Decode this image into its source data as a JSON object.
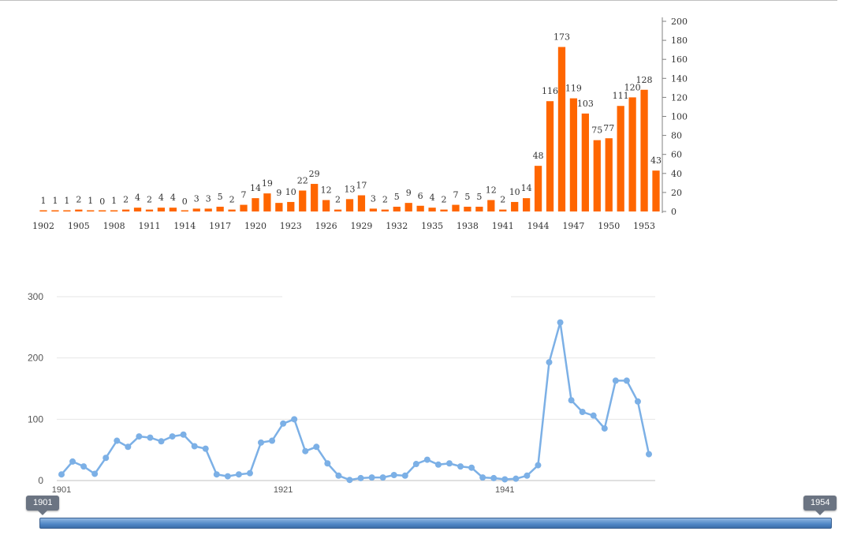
{
  "colors": {
    "bar": "#ff6600",
    "line": "#7cb0e6",
    "grid": "#e6e6e6",
    "axis_text": "#333333"
  },
  "range_slider": {
    "start_label": "1901",
    "end_label": "1954"
  },
  "chart_data": [
    {
      "type": "bar",
      "x": [
        1902,
        1903,
        1904,
        1905,
        1906,
        1907,
        1908,
        1909,
        1910,
        1911,
        1912,
        1913,
        1914,
        1915,
        1916,
        1917,
        1918,
        1919,
        1920,
        1921,
        1922,
        1923,
        1924,
        1925,
        1926,
        1927,
        1928,
        1929,
        1930,
        1931,
        1932,
        1933,
        1934,
        1935,
        1936,
        1937,
        1938,
        1939,
        1940,
        1941,
        1942,
        1943,
        1944,
        1945,
        1946,
        1947,
        1948,
        1949,
        1950,
        1951,
        1952,
        1953,
        1954
      ],
      "values": [
        1,
        1,
        1,
        2,
        1,
        0,
        1,
        2,
        4,
        2,
        4,
        4,
        0,
        3,
        3,
        5,
        2,
        7,
        14,
        19,
        9,
        10,
        22,
        29,
        12,
        2,
        13,
        17,
        3,
        2,
        5,
        9,
        6,
        4,
        2,
        7,
        5,
        5,
        12,
        2,
        10,
        14,
        48,
        116,
        173,
        119,
        103,
        75,
        77,
        111,
        120,
        128,
        43
      ],
      "x_tick_labels": [
        "1902",
        "1905",
        "1908",
        "1911",
        "1914",
        "1917",
        "1920",
        "1923",
        "1926",
        "1929",
        "1932",
        "1935",
        "1938",
        "1941",
        "1944",
        "1947",
        "1950",
        "1953"
      ],
      "y_tick_labels": [
        "0",
        "20",
        "40",
        "60",
        "80",
        "100",
        "120",
        "140",
        "160",
        "180",
        "200"
      ],
      "ylim": [
        0,
        200
      ],
      "yaxis_side": "right",
      "data_labels": true,
      "grid": false
    },
    {
      "type": "line",
      "x": [
        1901,
        1902,
        1903,
        1904,
        1905,
        1906,
        1907,
        1908,
        1909,
        1910,
        1911,
        1912,
        1913,
        1914,
        1915,
        1916,
        1917,
        1918,
        1919,
        1920,
        1921,
        1922,
        1923,
        1924,
        1925,
        1926,
        1927,
        1928,
        1929,
        1930,
        1931,
        1932,
        1933,
        1934,
        1935,
        1936,
        1937,
        1938,
        1939,
        1940,
        1941,
        1942,
        1943,
        1944,
        1945,
        1946,
        1947,
        1948,
        1949,
        1950,
        1951,
        1952,
        1953,
        1954
      ],
      "values": [
        10,
        31,
        23,
        11,
        37,
        65,
        55,
        72,
        70,
        64,
        72,
        75,
        56,
        52,
        10,
        7,
        10,
        12,
        62,
        65,
        93,
        100,
        48,
        55,
        28,
        8,
        1,
        4,
        5,
        5,
        9,
        8,
        27,
        34,
        26,
        28,
        23,
        21,
        5,
        4,
        2,
        3,
        8,
        25,
        193,
        258,
        131,
        112,
        106,
        85,
        163,
        163,
        129,
        43
      ],
      "x_tick_labels": [
        "1901",
        "1921",
        "1941"
      ],
      "y_tick_labels": [
        "0",
        "100",
        "200",
        "300"
      ],
      "ylim": [
        0,
        300
      ],
      "grid": true,
      "markers": true
    }
  ]
}
